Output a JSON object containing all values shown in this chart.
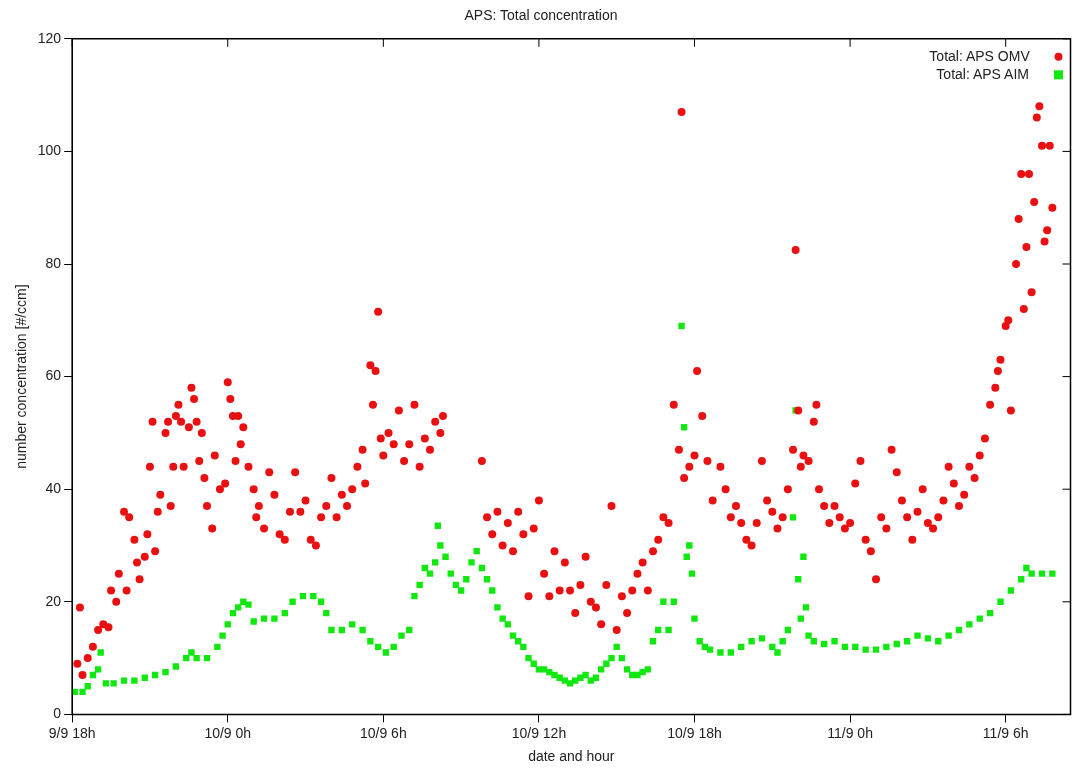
{
  "chart_data": {
    "type": "scatter",
    "title": "APS: Total concentration",
    "xlabel": "date and hour",
    "ylabel": "number concentration [#/ccm]",
    "xlim": [
      "--09-09T18:00",
      "--09-11T08:30"
    ],
    "xticks": [
      {
        "value": "--09-09T18:00",
        "label": "9/9 18h"
      },
      {
        "value": "--09-10T00:00",
        "label": "10/9 0h"
      },
      {
        "value": "--09-10T06:00",
        "label": "10/9 6h"
      },
      {
        "value": "--09-10T12:00",
        "label": "10/9 12h"
      },
      {
        "value": "--09-10T18:00",
        "label": "10/9 18h"
      },
      {
        "value": "--09-11T00:00",
        "label": "11/9 0h"
      },
      {
        "value": "--09-11T06:00",
        "label": "11/9 6h"
      }
    ],
    "ylim": [
      0,
      120
    ],
    "yticks": [
      0,
      20,
      40,
      60,
      80,
      100,
      120
    ],
    "grid": false,
    "legend": "top right",
    "series": [
      {
        "name": "Total: APS OMV",
        "color": "#e81010",
        "marker": "circle",
        "x": [
          "--09-09T18:12",
          "--09-09T18:18",
          "--09-09T18:24",
          "--09-09T18:36",
          "--09-09T18:48",
          "--09-09T19:00",
          "--09-09T19:12",
          "--09-09T19:24",
          "--09-09T19:30",
          "--09-09T19:42",
          "--09-09T19:48",
          "--09-09T20:00",
          "--09-09T20:06",
          "--09-09T20:12",
          "--09-09T20:24",
          "--09-09T20:30",
          "--09-09T20:36",
          "--09-09T20:48",
          "--09-09T20:54",
          "--09-09T21:00",
          "--09-09T21:06",
          "--09-09T21:12",
          "--09-09T21:18",
          "--09-09T21:24",
          "--09-09T21:36",
          "--09-09T21:42",
          "--09-09T21:48",
          "--09-09T21:54",
          "--09-09T22:00",
          "--09-09T22:06",
          "--09-09T22:12",
          "--09-09T22:18",
          "--09-09T22:30",
          "--09-09T22:36",
          "--09-09T22:42",
          "--09-09T22:48",
          "--09-09T22:54",
          "--09-09T23:00",
          "--09-09T23:06",
          "--09-09T23:12",
          "--09-09T23:24",
          "--09-09T23:30",
          "--09-09T23:42",
          "--09-09T23:54",
          "--09-10T00:00",
          "--09-10T00:06",
          "--09-10T00:12",
          "--09-10T00:18",
          "--09-10T00:24",
          "--09-10T00:30",
          "--09-10T00:36",
          "--09-10T00:48",
          "--09-10T01:00",
          "--09-10T01:06",
          "--09-10T01:12",
          "--09-10T01:24",
          "--09-10T01:36",
          "--09-10T01:48",
          "--09-10T02:00",
          "--09-10T02:12",
          "--09-10T02:24",
          "--09-10T02:36",
          "--09-10T02:48",
          "--09-10T03:00",
          "--09-10T03:12",
          "--09-10T03:24",
          "--09-10T03:36",
          "--09-10T03:48",
          "--09-10T04:00",
          "--09-10T04:12",
          "--09-10T04:24",
          "--09-10T04:36",
          "--09-10T04:48",
          "--09-10T05:00",
          "--09-10T05:12",
          "--09-10T05:18",
          "--09-10T05:30",
          "--09-10T05:36",
          "--09-10T05:42",
          "--09-10T05:48",
          "--09-10T05:54",
          "--09-10T06:00",
          "--09-10T06:12",
          "--09-10T06:24",
          "--09-10T06:36",
          "--09-10T06:48",
          "--09-10T07:00",
          "--09-10T07:12",
          "--09-10T07:24",
          "--09-10T07:36",
          "--09-10T07:48",
          "--09-10T08:00",
          "--09-10T08:12",
          "--09-10T08:18",
          "--09-10T09:48",
          "--09-10T10:00",
          "--09-10T10:12",
          "--09-10T10:24",
          "--09-10T10:36",
          "--09-10T10:48",
          "--09-10T11:00",
          "--09-10T11:12",
          "--09-10T11:24",
          "--09-10T11:36",
          "--09-10T11:48",
          "--09-10T12:00",
          "--09-10T12:12",
          "--09-10T12:24",
          "--09-10T12:36",
          "--09-10T12:48",
          "--09-10T13:00",
          "--09-10T13:12",
          "--09-10T13:24",
          "--09-10T13:36",
          "--09-10T13:48",
          "--09-10T14:00",
          "--09-10T14:12",
          "--09-10T14:24",
          "--09-10T14:36",
          "--09-10T14:48",
          "--09-10T15:00",
          "--09-10T15:12",
          "--09-10T15:24",
          "--09-10T15:36",
          "--09-10T15:48",
          "--09-10T16:00",
          "--09-10T16:12",
          "--09-10T16:24",
          "--09-10T16:36",
          "--09-10T16:48",
          "--09-10T17:00",
          "--09-10T17:12",
          "--09-10T17:24",
          "--09-10T17:30",
          "--09-10T17:36",
          "--09-10T17:48",
          "--09-10T18:00",
          "--09-10T18:06",
          "--09-10T18:18",
          "--09-10T18:30",
          "--09-10T18:42",
          "--09-10T19:00",
          "--09-10T19:12",
          "--09-10T19:24",
          "--09-10T19:36",
          "--09-10T19:48",
          "--09-10T20:00",
          "--09-10T20:12",
          "--09-10T20:24",
          "--09-10T20:36",
          "--09-10T20:48",
          "--09-10T21:00",
          "--09-10T21:12",
          "--09-10T21:24",
          "--09-10T21:36",
          "--09-10T21:48",
          "--09-10T21:54",
          "--09-10T22:00",
          "--09-10T22:06",
          "--09-10T22:12",
          "--09-10T22:24",
          "--09-10T22:36",
          "--09-10T22:42",
          "--09-10T22:48",
          "--09-10T23:00",
          "--09-10T23:12",
          "--09-10T23:24",
          "--09-10T23:36",
          "--09-10T23:48",
          "--09-11T00:00",
          "--09-11T00:12",
          "--09-11T00:24",
          "--09-11T00:36",
          "--09-11T00:48",
          "--09-11T01:00",
          "--09-11T01:12",
          "--09-11T01:24",
          "--09-11T01:36",
          "--09-11T01:48",
          "--09-11T02:00",
          "--09-11T02:12",
          "--09-11T02:24",
          "--09-11T02:36",
          "--09-11T02:48",
          "--09-11T03:00",
          "--09-11T03:12",
          "--09-11T03:24",
          "--09-11T03:36",
          "--09-11T03:48",
          "--09-11T04:00",
          "--09-11T04:12",
          "--09-11T04:24",
          "--09-11T04:36",
          "--09-11T04:48",
          "--09-11T05:00",
          "--09-11T05:12",
          "--09-11T05:24",
          "--09-11T05:36",
          "--09-11T05:42",
          "--09-11T05:48",
          "--09-11T06:00",
          "--09-11T06:06",
          "--09-11T06:12",
          "--09-11T06:24",
          "--09-11T06:30",
          "--09-11T06:36",
          "--09-11T06:42",
          "--09-11T06:48",
          "--09-11T06:54",
          "--09-11T07:00",
          "--09-11T07:06",
          "--09-11T07:12",
          "--09-11T07:18",
          "--09-11T07:24",
          "--09-11T07:30",
          "--09-11T07:36",
          "--09-11T07:42",
          "--09-11T07:48"
        ],
        "values": [
          9,
          19,
          7,
          10,
          12,
          15,
          16,
          15.5,
          22,
          20,
          25,
          36,
          22,
          35,
          31,
          27,
          24,
          28,
          32,
          44,
          52,
          29,
          36,
          39,
          50,
          52,
          37,
          44,
          53,
          55,
          52,
          44,
          51,
          58,
          56,
          52,
          45,
          50,
          42,
          37,
          33,
          46,
          40,
          41,
          59,
          56,
          53,
          45,
          53,
          48,
          51,
          44,
          40,
          35,
          37,
          33,
          43,
          39,
          32,
          31,
          36,
          43,
          36,
          38,
          31,
          30,
          35,
          37,
          42,
          35,
          39,
          37,
          40,
          44,
          47,
          41,
          62,
          55,
          61,
          71.5,
          49,
          46,
          50,
          48,
          54,
          45,
          48,
          55,
          44,
          49,
          47,
          52,
          50,
          53,
          45,
          35,
          32,
          36,
          30,
          34,
          29,
          36,
          32,
          21,
          33,
          38,
          25,
          21,
          29,
          22,
          27,
          22,
          18,
          23,
          28,
          20,
          19,
          16,
          23,
          37,
          15,
          21,
          18,
          22,
          25,
          27,
          22,
          29,
          31,
          35,
          34,
          55,
          47,
          107,
          42,
          44,
          46,
          61,
          53,
          45,
          38,
          44,
          40,
          35,
          37,
          34,
          31,
          30,
          34,
          45,
          38,
          36,
          33,
          35,
          40,
          47,
          82.5,
          54,
          44,
          46,
          45,
          52,
          55,
          40,
          37,
          34,
          37,
          35,
          33,
          34,
          41,
          45,
          31,
          29,
          24,
          35,
          33,
          47,
          43,
          38,
          35,
          31,
          36,
          40,
          34,
          33,
          35,
          38,
          44,
          41,
          37,
          39,
          44,
          42,
          46,
          49,
          55,
          58,
          61,
          63,
          69,
          70,
          54,
          80,
          88,
          96,
          72,
          83,
          96,
          75,
          91,
          106,
          108,
          101,
          84,
          86,
          101,
          90
        ]
      },
      {
        "name": "Total: APS AIM",
        "color": "#10e810",
        "marker": "square",
        "x": [
          "--09-09T18:06",
          "--09-09T18:24",
          "--09-09T18:36",
          "--09-09T18:48",
          "--09-09T19:00",
          "--09-09T19:06",
          "--09-09T19:18",
          "--09-09T19:36",
          "--09-09T20:00",
          "--09-09T20:24",
          "--09-09T20:48",
          "--09-09T21:12",
          "--09-09T21:36",
          "--09-09T22:00",
          "--09-09T22:24",
          "--09-09T22:36",
          "--09-09T22:48",
          "--09-09T23:12",
          "--09-09T23:36",
          "--09-09T23:48",
          "--09-10T00:00",
          "--09-10T00:12",
          "--09-10T00:24",
          "--09-10T00:36",
          "--09-10T00:48",
          "--09-10T01:00",
          "--09-10T01:24",
          "--09-10T01:48",
          "--09-10T02:12",
          "--09-10T02:30",
          "--09-10T02:54",
          "--09-10T03:18",
          "--09-10T03:36",
          "--09-10T03:48",
          "--09-10T04:00",
          "--09-10T04:24",
          "--09-10T04:48",
          "--09-10T05:12",
          "--09-10T05:30",
          "--09-10T05:48",
          "--09-10T06:06",
          "--09-10T06:24",
          "--09-10T06:42",
          "--09-10T07:00",
          "--09-10T07:12",
          "--09-10T07:24",
          "--09-10T07:36",
          "--09-10T07:48",
          "--09-10T08:00",
          "--09-10T08:06",
          "--09-10T08:12",
          "--09-10T08:24",
          "--09-10T08:36",
          "--09-10T08:48",
          "--09-10T09:00",
          "--09-10T09:12",
          "--09-10T09:24",
          "--09-10T09:36",
          "--09-10T09:48",
          "--09-10T10:00",
          "--09-10T10:12",
          "--09-10T10:24",
          "--09-10T10:36",
          "--09-10T10:48",
          "--09-10T11:00",
          "--09-10T11:12",
          "--09-10T11:24",
          "--09-10T11:36",
          "--09-10T11:48",
          "--09-10T12:00",
          "--09-10T12:12",
          "--09-10T12:24",
          "--09-10T12:36",
          "--09-10T12:48",
          "--09-10T13:00",
          "--09-10T13:12",
          "--09-10T13:24",
          "--09-10T13:36",
          "--09-10T13:48",
          "--09-10T14:00",
          "--09-10T14:12",
          "--09-10T14:24",
          "--09-10T14:36",
          "--09-10T14:48",
          "--09-10T15:00",
          "--09-10T15:12",
          "--09-10T15:24",
          "--09-10T15:36",
          "--09-10T15:48",
          "--09-10T16:00",
          "--09-10T16:12",
          "--09-10T16:24",
          "--09-10T16:36",
          "--09-10T16:48",
          "--09-10T17:00",
          "--09-10T17:12",
          "--09-10T17:30",
          "--09-10T17:36",
          "--09-10T17:42",
          "--09-10T17:48",
          "--09-10T17:54",
          "--09-10T18:00",
          "--09-10T18:12",
          "--09-10T18:24",
          "--09-10T18:36",
          "--09-10T19:00",
          "--09-10T19:24",
          "--09-10T19:48",
          "--09-10T20:12",
          "--09-10T20:36",
          "--09-10T21:00",
          "--09-10T21:12",
          "--09-10T21:24",
          "--09-10T21:36",
          "--09-10T21:48",
          "--09-10T21:54",
          "--09-10T22:00",
          "--09-10T22:06",
          "--09-10T22:12",
          "--09-10T22:18",
          "--09-10T22:24",
          "--09-10T22:36",
          "--09-10T23:00",
          "--09-10T23:24",
          "--09-10T23:48",
          "--09-11T00:12",
          "--09-11T00:36",
          "--09-11T01:00",
          "--09-11T01:24",
          "--09-11T01:48",
          "--09-11T02:12",
          "--09-11T02:36",
          "--09-11T03:00",
          "--09-11T03:24",
          "--09-11T03:48",
          "--09-11T04:12",
          "--09-11T04:36",
          "--09-11T05:00",
          "--09-11T05:24",
          "--09-11T05:48",
          "--09-11T06:12",
          "--09-11T06:36",
          "--09-11T06:48",
          "--09-11T07:00",
          "--09-11T07:24",
          "--09-11T07:48"
        ],
        "values": [
          4,
          4,
          5,
          7,
          8,
          11,
          5.5,
          5.5,
          6,
          6,
          6.5,
          7,
          7.5,
          8.5,
          10,
          11,
          10,
          10,
          12,
          14,
          16,
          18,
          19,
          20,
          19.5,
          16.5,
          17,
          17,
          18,
          20,
          21,
          21,
          20,
          18,
          15,
          15,
          16,
          15,
          13,
          12,
          11,
          12,
          14,
          15,
          21,
          23,
          26,
          25,
          27,
          33.5,
          30,
          28,
          25,
          23,
          22,
          24,
          27,
          29,
          26,
          24,
          22,
          19,
          17,
          16,
          14,
          13,
          12,
          10,
          9,
          8,
          8,
          7.5,
          7,
          6.5,
          6,
          5.5,
          6,
          6.5,
          7,
          6,
          6.5,
          8,
          9,
          10,
          12,
          10,
          8,
          7,
          7,
          7.5,
          8,
          13,
          15,
          20,
          15,
          20,
          69,
          51,
          28,
          30,
          25,
          17,
          13,
          12,
          11.5,
          11,
          11,
          12,
          13,
          13.5,
          12,
          11,
          13,
          15,
          35,
          54,
          24,
          17,
          28,
          19,
          14,
          13,
          12.5,
          13,
          12,
          12,
          11.5,
          11.5,
          12,
          12.5,
          13,
          14,
          13.5,
          13,
          14,
          15,
          16,
          17,
          18,
          20,
          22,
          24,
          26,
          25,
          25,
          25
        ]
      }
    ]
  }
}
